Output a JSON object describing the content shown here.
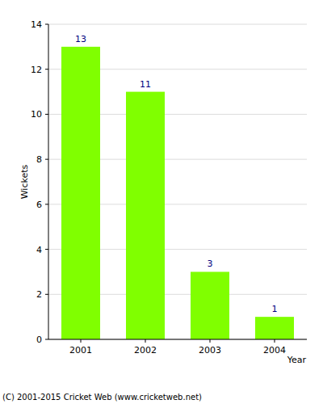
{
  "chart_data": {
    "type": "bar",
    "categories": [
      "2001",
      "2002",
      "2003",
      "2004"
    ],
    "values": [
      13,
      11,
      3,
      1
    ],
    "color": "#80ff00",
    "x_label": "Year",
    "y_label": "Wickets",
    "ylim": [
      0,
      14
    ],
    "yticks": [
      0,
      2,
      4,
      6,
      8,
      10,
      12,
      14
    ],
    "grid": true,
    "data_labels": true,
    "annotations": [
      "(C) 2001-2015 Cricket Web (www.cricketweb.net)"
    ]
  }
}
